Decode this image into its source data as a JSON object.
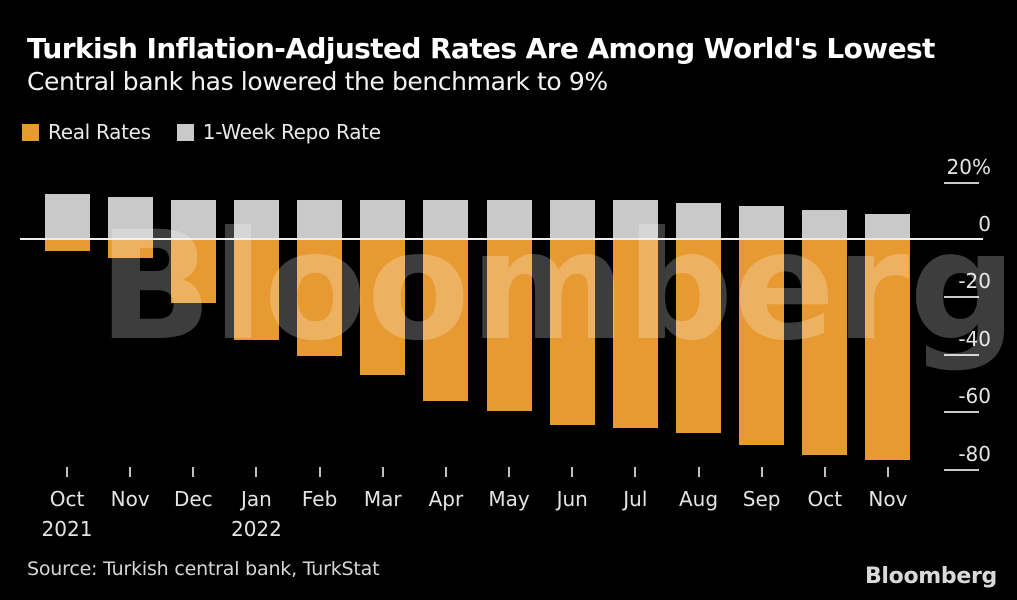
{
  "header": {
    "title": "Turkish Inflation-Adjusted Rates Are Among World's Lowest",
    "subtitle": "Central bank has lowered the benchmark to 9%"
  },
  "legend": {
    "items": [
      {
        "label": "Real Rates",
        "color": "#E79A31"
      },
      {
        "label": "1-Week Repo Rate",
        "color": "#C9C9C9"
      }
    ]
  },
  "watermark": "Bloomberg",
  "footer": {
    "source": "Source: Turkish central bank, TurkStat",
    "logo": "Bloomberg"
  },
  "colors": {
    "background": "#000000",
    "real_rates_orange": "#E79A31",
    "repo_rate_gray": "#C9C9C9",
    "zero_line": "#EDEDED",
    "axis_text": "#E3E3E3",
    "watermark": "rgba(255,255,255,0.24)"
  },
  "chart_data": {
    "type": "bar",
    "title": "Turkish Inflation-Adjusted Rates Are Among World's Lowest",
    "subtitle": "Central bank has lowered the benchmark to 9%",
    "categories": [
      "Oct",
      "Nov",
      "Dec",
      "Jan",
      "Feb",
      "Mar",
      "Apr",
      "May",
      "Jun",
      "Jul",
      "Aug",
      "Sep",
      "Oct",
      "Nov"
    ],
    "category_years": {
      "0": "2021",
      "3": "2022"
    },
    "series": [
      {
        "name": "Real Rates",
        "color": "#E79A31",
        "values": [
          -3.9,
          -6.3,
          -22.1,
          -34.7,
          -40.4,
          -47.1,
          -56.0,
          -59.5,
          -64.6,
          -65.6,
          -67.2,
          -71.5,
          -75.0,
          -76.5
        ]
      },
      {
        "name": "1-Week Repo Rate",
        "color": "#C9C9C9",
        "values": [
          16,
          15,
          14,
          14,
          14,
          14,
          14,
          14,
          14,
          14,
          13,
          12,
          10.5,
          9
        ]
      }
    ],
    "y_axis": {
      "unit": "%",
      "ticks": [
        20,
        0,
        -20,
        -40,
        -60,
        -80
      ],
      "tick_labels": [
        "20%",
        "0",
        "-20",
        "-40",
        "-60",
        "-80"
      ],
      "range": [
        -85,
        22
      ]
    },
    "grid": false,
    "legend_position": "top-left",
    "axis_side": "right"
  }
}
